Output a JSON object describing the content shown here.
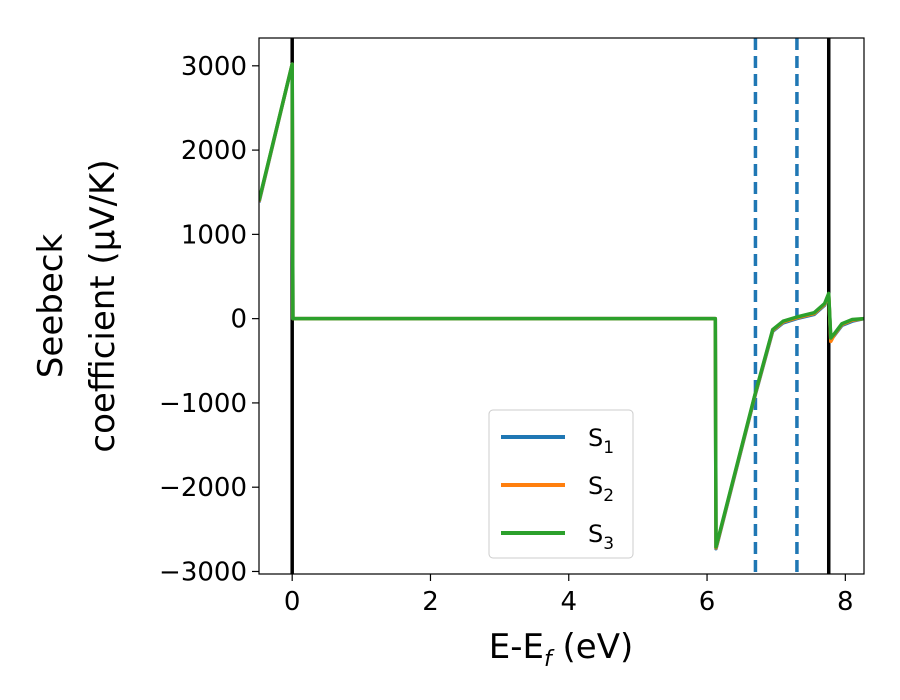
{
  "chart_data": {
    "type": "line",
    "xlabel_main": "E-E",
    "xlabel_sub": "f",
    "xlabel_unit": " (eV)",
    "ylabel_line1": "Seebeck",
    "ylabel_line2": "coefficient  (μV/K)",
    "xlim": [
      -0.48,
      8.27
    ],
    "ylim": [
      -3030,
      3330
    ],
    "x_ticks": [
      0,
      2,
      4,
      6,
      8
    ],
    "y_ticks": [
      -3000,
      -2000,
      -1000,
      0,
      1000,
      2000,
      3000
    ],
    "y_tick_labels": [
      "−3000",
      "−2000",
      "−1000",
      "0",
      "1000",
      "2000",
      "3000"
    ],
    "series": [
      {
        "name": "S",
        "sub": "1",
        "color": "#1f77b4",
        "x": [
          -0.48,
          0.0,
          0.01,
          6.12,
          6.13,
          6.7,
          6.95,
          7.1,
          7.3,
          7.55,
          7.7,
          7.76,
          7.79,
          7.84,
          7.95,
          8.1,
          8.27
        ],
        "y": [
          1380,
          3020,
          0,
          0,
          -2730,
          -900,
          -150,
          -50,
          0,
          50,
          160,
          280,
          -250,
          -200,
          -80,
          -30,
          0
        ]
      },
      {
        "name": "S",
        "sub": "2",
        "color": "#ff7f0e",
        "x": [
          -0.48,
          0.0,
          0.01,
          6.12,
          6.13,
          6.7,
          6.95,
          7.1,
          7.3,
          7.55,
          7.7,
          7.76,
          7.79,
          7.84,
          7.95,
          8.1,
          8.27
        ],
        "y": [
          1390,
          3020,
          0,
          0,
          -2720,
          -890,
          -140,
          -40,
          10,
          60,
          170,
          290,
          -270,
          -190,
          -70,
          -20,
          0
        ]
      },
      {
        "name": "S",
        "sub": "3",
        "color": "#2ca02c",
        "x": [
          -0.48,
          0.0,
          0.01,
          6.12,
          6.13,
          6.7,
          6.95,
          7.1,
          7.3,
          7.55,
          7.7,
          7.76,
          7.79,
          7.84,
          7.95,
          8.1,
          8.27
        ],
        "y": [
          1400,
          3020,
          0,
          0,
          -2710,
          -880,
          -130,
          -30,
          20,
          70,
          180,
          300,
          -230,
          -180,
          -60,
          -10,
          0
        ]
      }
    ],
    "vlines": [
      {
        "x": 0.0,
        "color": "#000000",
        "style": "solid"
      },
      {
        "x": 7.76,
        "color": "#000000",
        "style": "solid"
      },
      {
        "x": 6.7,
        "color": "#1f77b4",
        "style": "dashed"
      },
      {
        "x": 7.3,
        "color": "#1f77b4",
        "style": "dashed"
      }
    ],
    "legend_position": "lower center",
    "grid": false
  }
}
